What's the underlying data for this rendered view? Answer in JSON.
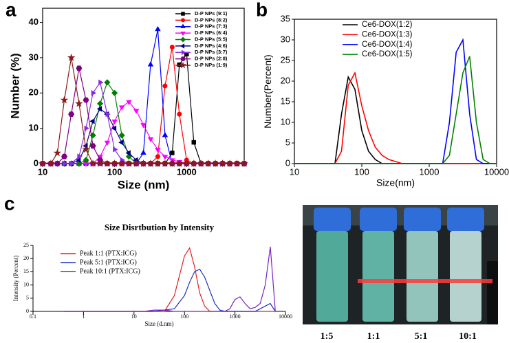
{
  "panel_labels": [
    "a",
    "b",
    "c"
  ],
  "photo": {
    "labels": [
      "1:5",
      "1:1",
      "5:1",
      "10:1"
    ]
  },
  "chart_data": [
    {
      "type": "line",
      "x_label": "Size (nm)",
      "y_label": "Number (%)",
      "log_x": true,
      "legend": "upper right",
      "xlim": [
        10,
        6310
      ],
      "xticks": [
        10,
        100,
        1000
      ],
      "ylim": [
        0,
        44
      ],
      "yticks": [
        0,
        10,
        20,
        30,
        40
      ],
      "x": [
        10,
        13,
        16,
        20,
        25,
        32,
        40,
        50,
        63,
        79,
        100,
        126,
        158,
        200,
        251,
        316,
        398,
        501,
        631,
        794,
        1000,
        1259,
        1585,
        1995,
        2512,
        3162,
        3981,
        5012,
        6310
      ],
      "series": [
        {
          "name": "D-P NPs (9:1)",
          "color": "#000000",
          "marker": "square",
          "values": [
            0,
            0,
            0,
            0,
            0,
            0,
            0,
            0,
            0,
            0,
            0,
            0,
            0,
            0,
            0,
            0,
            0,
            0,
            3,
            28,
            31,
            6,
            0,
            0,
            0,
            0,
            0,
            0,
            0
          ]
        },
        {
          "name": "D-P NPs (8:2)",
          "color": "#ff0000",
          "marker": "circle",
          "values": [
            0,
            0,
            0,
            0,
            0,
            0,
            0,
            0,
            0,
            0,
            0,
            0,
            0,
            0,
            0,
            0,
            2,
            22,
            33,
            14,
            1,
            0,
            0,
            0,
            0,
            0,
            0,
            0,
            0
          ]
        },
        {
          "name": "D-P NPs (7:3)",
          "color": "#0000ff",
          "marker": "triangle-up",
          "values": [
            0,
            0,
            0,
            0,
            0,
            0,
            0,
            0,
            0,
            0,
            0,
            0,
            0,
            0,
            3,
            28,
            38,
            8,
            0,
            0,
            0,
            0,
            0,
            0,
            0,
            0,
            0,
            0,
            0
          ]
        },
        {
          "name": "D-P NPs (6:4)",
          "color": "#ff00ff",
          "marker": "triangle-down",
          "values": [
            0,
            0,
            0,
            0,
            0,
            0,
            0,
            0,
            2,
            6,
            12,
            16,
            17.5,
            15,
            11,
            7,
            4,
            2,
            1,
            0.5,
            0,
            0,
            0,
            0,
            0,
            0,
            0,
            0,
            0
          ]
        },
        {
          "name": "D-P NPs (5:5)",
          "color": "#008000",
          "marker": "diamond",
          "values": [
            0,
            0,
            0,
            0,
            0,
            0,
            1,
            8,
            17,
            23,
            20,
            8,
            2,
            0,
            0,
            0,
            0,
            0,
            0,
            0,
            0,
            0,
            0,
            0,
            0,
            0,
            0,
            0,
            0
          ]
        },
        {
          "name": "D-P NPs (4:6)",
          "color": "#000080",
          "marker": "triangle-left",
          "values": [
            0,
            0,
            0,
            0,
            0,
            1,
            5,
            12,
            15.5,
            14,
            10,
            6,
            3,
            1,
            0,
            0,
            0,
            0,
            0,
            0,
            0,
            0,
            0,
            0,
            0,
            0,
            0,
            0,
            0
          ]
        },
        {
          "name": "D-P NPs (3:7)",
          "color": "#8a2be2",
          "marker": "triangle-right",
          "values": [
            0,
            0,
            0,
            0,
            0,
            2,
            10,
            20,
            23,
            14,
            4,
            1,
            0,
            0,
            0,
            0,
            0,
            0,
            0,
            0,
            0,
            0,
            0,
            0,
            0,
            0,
            0,
            0,
            0
          ]
        },
        {
          "name": "D-P NPs (2:8)",
          "color": "#800080",
          "marker": "hexagon",
          "values": [
            0,
            0,
            0,
            2,
            14,
            27,
            18,
            5,
            1,
            0,
            0,
            0,
            0,
            0,
            0,
            0,
            0,
            0,
            0,
            0,
            0,
            0,
            0,
            0,
            0,
            0,
            0,
            0,
            0
          ]
        },
        {
          "name": "D-P NPs (1:9)",
          "color": "#8b1a1a",
          "marker": "star",
          "values": [
            0,
            0,
            3,
            18,
            30,
            17,
            4,
            0,
            0,
            0,
            0,
            0,
            0,
            0,
            0,
            0,
            0,
            0,
            0,
            0,
            0,
            0,
            0,
            0,
            0,
            0,
            0,
            0,
            0
          ]
        }
      ]
    },
    {
      "type": "line",
      "x_label": "Size(nm)",
      "y_label": "Number(Percent)",
      "log_x": true,
      "legend": "upper left",
      "xlim": [
        10,
        10000
      ],
      "xticks": [
        10,
        100,
        1000,
        10000
      ],
      "ylim": [
        0,
        35
      ],
      "yticks": [
        0,
        5,
        10,
        15,
        20,
        25,
        30,
        35
      ],
      "x": [
        10,
        13,
        16,
        20,
        25,
        32,
        40,
        50,
        63,
        79,
        100,
        126,
        158,
        200,
        251,
        316,
        398,
        501,
        631,
        794,
        1000,
        1259,
        1585,
        1995,
        2512,
        3162,
        3981,
        5012,
        6310,
        7943,
        10000
      ],
      "series": [
        {
          "name": "Ce6-DOX(1:2)",
          "color": "#000000",
          "values": [
            0,
            0,
            0,
            0,
            0,
            0,
            0,
            12,
            21,
            18,
            8,
            3,
            1,
            0,
            0,
            0,
            0,
            0,
            0,
            0,
            0,
            0,
            0,
            0,
            0,
            0,
            0,
            0,
            0,
            0,
            0
          ]
        },
        {
          "name": "Ce6-DOX(1:3)",
          "color": "#ff0000",
          "values": [
            0,
            0,
            0,
            0,
            0,
            0,
            0,
            3,
            19,
            22,
            14,
            8,
            4,
            2,
            1,
            0.5,
            0,
            0,
            0,
            0,
            0,
            0,
            0,
            0,
            0,
            0,
            0,
            0,
            0,
            0,
            0
          ]
        },
        {
          "name": "Ce6-DOX(1:4)",
          "color": "#0000ff",
          "values": [
            0,
            0,
            0,
            0,
            0,
            0,
            0,
            0,
            0,
            0,
            0,
            0,
            0,
            0,
            0,
            0,
            0,
            0,
            0,
            0,
            0,
            0,
            0,
            10,
            27,
            30,
            12,
            1,
            0,
            0,
            0
          ]
        },
        {
          "name": "Ce6-DOX(1:5)",
          "color": "#008000",
          "values": [
            0,
            0,
            0,
            0,
            0,
            0,
            0,
            0,
            0,
            0,
            0,
            0,
            0,
            0,
            0,
            0,
            0,
            0,
            0,
            0,
            0,
            0,
            0,
            2,
            12,
            22,
            26,
            10,
            1,
            0,
            0
          ]
        }
      ]
    },
    {
      "type": "line",
      "title": "Size Disrtbution by Intensity",
      "x_label": "Size (d.nm)",
      "y_label": "Intensity (Percent)",
      "log_x": true,
      "legend": "upper left",
      "xlim": [
        0.1,
        10000
      ],
      "xticks": [
        0.1,
        1,
        10,
        100,
        1000,
        10000
      ],
      "ylim": [
        0,
        25
      ],
      "yticks": [
        0,
        5,
        10,
        15,
        20,
        25
      ],
      "x": [
        0.4,
        1,
        2.5,
        6.3,
        10,
        16,
        25,
        40,
        63,
        100,
        126,
        158,
        200,
        251,
        316,
        398,
        501,
        631,
        794,
        1000,
        1259,
        1585,
        1995,
        2512,
        3162,
        3981,
        5012,
        6310
      ],
      "series": [
        {
          "name": "Peak 1:1 (PTX:ICG)",
          "color": "#e0201c",
          "values": [
            0,
            0,
            0,
            0,
            0,
            0,
            0,
            0,
            6,
            21,
            24,
            17,
            7,
            2,
            0,
            0,
            0,
            0,
            0,
            0,
            0,
            0,
            0,
            0,
            0,
            0,
            0,
            0
          ]
        },
        {
          "name": "Peak 5:1 (PTX:ICG)",
          "color": "#1c2fc0",
          "values": [
            0,
            0,
            0,
            0,
            0,
            0,
            0,
            0.5,
            1,
            6,
            11,
            15,
            16,
            13,
            8,
            3,
            0.5,
            0,
            0,
            0,
            0,
            0,
            0,
            0,
            1,
            2,
            3,
            0
          ]
        },
        {
          "name": "Peak 10:1 (PTX:ICG)",
          "color": "#7a1fc8",
          "values": [
            0,
            0,
            0,
            0,
            0,
            0,
            0.5,
            0.5,
            0,
            0,
            0,
            0,
            0,
            0,
            0,
            0,
            0,
            0,
            1,
            4.5,
            5.5,
            3,
            1,
            1.5,
            3,
            10,
            24.5,
            0
          ]
        }
      ]
    }
  ]
}
